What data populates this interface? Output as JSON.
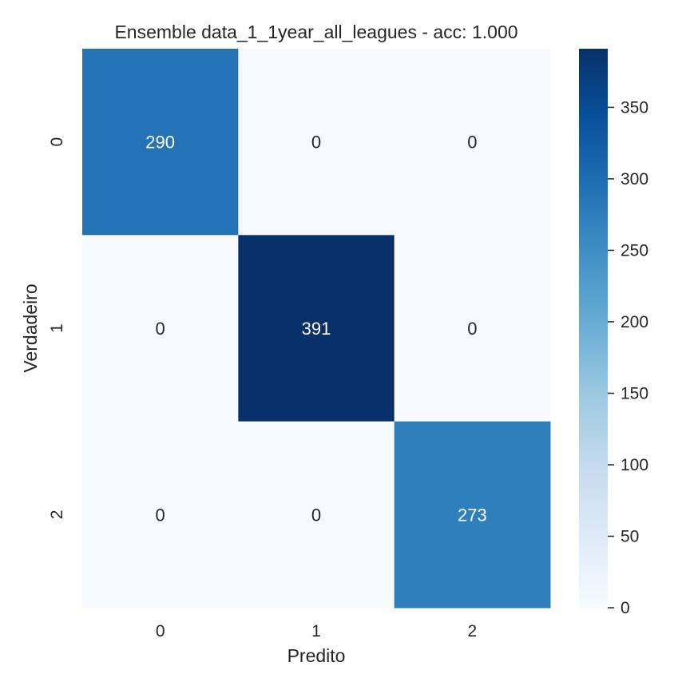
{
  "chart_data": {
    "type": "heatmap",
    "title": "Ensemble data_1_1year_all_leagues - acc: 1.000",
    "xlabel": "Predito",
    "ylabel": "Verdadeiro",
    "x_categories": [
      "0",
      "1",
      "2"
    ],
    "y_categories": [
      "0",
      "1",
      "2"
    ],
    "values": [
      [
        290,
        0,
        0
      ],
      [
        0,
        391,
        0
      ],
      [
        0,
        0,
        273
      ]
    ],
    "colormap": "Blues",
    "color_range": [
      0,
      391
    ],
    "colorbar": {
      "ticks": [
        0,
        50,
        100,
        150,
        200,
        250,
        300,
        350
      ],
      "tick_labels": [
        "0",
        "50",
        "100",
        "150",
        "200",
        "250",
        "300",
        "350"
      ]
    },
    "annotate": true,
    "grid": false,
    "colors": {
      "text_dark": "#262626",
      "cell_text_on_light": "#262626",
      "cell_text_on_dark": "#ffffff"
    }
  }
}
